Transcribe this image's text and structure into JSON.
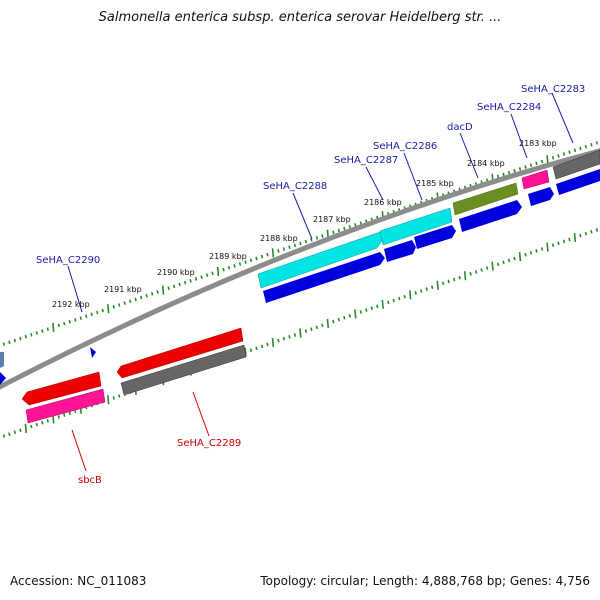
{
  "title": "Salmonella enterica subsp. enterica serovar Heidelberg str. ...",
  "footer": {
    "accession": "Accession: NC_011083",
    "topology": "Topology: circular; Length: 4,888,768 bp; Genes: 4,756"
  },
  "ticks": [
    {
      "label": "2183 kbp"
    },
    {
      "label": "2184 kbp"
    },
    {
      "label": "2185 kbp"
    },
    {
      "label": "2186 kbp"
    },
    {
      "label": "2187 kbp"
    },
    {
      "label": "2188 kbp"
    },
    {
      "label": "2189 kbp"
    },
    {
      "label": "2190 kbp"
    },
    {
      "label": "2191 kbp"
    },
    {
      "label": "2192 kbp"
    }
  ],
  "gene_labels": [
    {
      "name": "SeHA_C2283",
      "strand": "forward"
    },
    {
      "name": "SeHA_C2284",
      "strand": "forward"
    },
    {
      "name": "dacD",
      "strand": "forward"
    },
    {
      "name": "SeHA_C2286",
      "strand": "forward"
    },
    {
      "name": "SeHA_C2287",
      "strand": "forward"
    },
    {
      "name": "SeHA_C2288",
      "strand": "forward"
    },
    {
      "name": "SeHA_C2290",
      "strand": "forward"
    },
    {
      "name": "SeHA_C2289",
      "strand": "reverse"
    },
    {
      "name": "sbcB",
      "strand": "reverse"
    }
  ],
  "colors": {
    "forward_label": "#1a1aaa",
    "reverse_label": "#cc0000",
    "backbone": "#888888",
    "tick": "#2a8a2a",
    "cds": "#0000dd",
    "cyan": "#00e0e0",
    "olive": "#6b8e23",
    "magenta": "#ff1493",
    "gray": "#666666",
    "red": "#ee0000"
  }
}
